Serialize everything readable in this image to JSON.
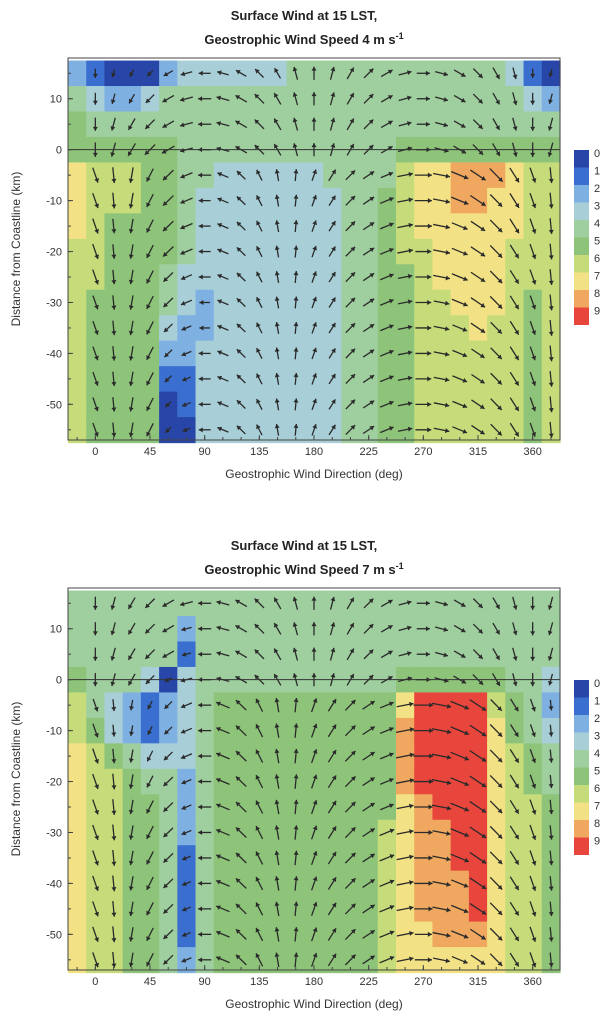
{
  "chart_data": [
    {
      "type": "heatmap",
      "title_line1": "Surface Wind at 15 LST,",
      "title_line2": "Geostrophic Wind Speed 4 m s",
      "title_superscript": "-1",
      "xlabel": "Geostrophic Wind Direction (deg)",
      "ylabel": "Distance from Coastline (km)",
      "xlim": [
        -22.5,
        382.5
      ],
      "ylim": [
        -57,
        18
      ],
      "xticks": [
        "0",
        "45",
        "90",
        "135",
        "180",
        "225",
        "270",
        "315",
        "360"
      ],
      "yticks": [
        "10",
        "0",
        "-10",
        "-20",
        "-30",
        "-40",
        "-50"
      ],
      "colorbar_labels": [
        "0",
        "1",
        "2",
        "3",
        "4",
        "5",
        "6",
        "7",
        "8",
        "9"
      ],
      "colors": [
        "#2846a8",
        "#3a6fd0",
        "#7eb0e2",
        "#a8cfd8",
        "#9fcf9e",
        "#8ec47a",
        "#c6dc7a",
        "#f2e285",
        "#f0a860",
        "#e8463c"
      ],
      "x": [
        -15,
        0,
        15,
        30,
        45,
        60,
        75,
        90,
        105,
        120,
        135,
        150,
        165,
        180,
        195,
        210,
        225,
        240,
        255,
        270,
        285,
        300,
        315,
        330,
        345,
        360,
        375
      ],
      "y": [
        15,
        10,
        5,
        0,
        -5,
        -10,
        -15,
        -20,
        -25,
        -30,
        -35,
        -40,
        -45,
        -50,
        -55
      ],
      "speed_by_column": [
        [
          2,
          4,
          5,
          5,
          7,
          7,
          7,
          6,
          6,
          6,
          6,
          6,
          6,
          6,
          6
        ],
        [
          1,
          3,
          4,
          5,
          6,
          6,
          6,
          6,
          6,
          5,
          5,
          5,
          5,
          5,
          5
        ],
        [
          0,
          2,
          4,
          5,
          6,
          6,
          5,
          5,
          5,
          5,
          5,
          5,
          5,
          5,
          5
        ],
        [
          0,
          2,
          4,
          5,
          6,
          6,
          5,
          5,
          5,
          5,
          5,
          5,
          5,
          5,
          5
        ],
        [
          0,
          3,
          4,
          5,
          5,
          5,
          5,
          5,
          5,
          5,
          5,
          5,
          5,
          5,
          5
        ],
        [
          2,
          4,
          4,
          5,
          5,
          5,
          5,
          5,
          4,
          4,
          3,
          2,
          1,
          0,
          0
        ],
        [
          3,
          4,
          4,
          4,
          4,
          4,
          4,
          4,
          3,
          3,
          2,
          2,
          1,
          1,
          0
        ],
        [
          3,
          4,
          4,
          4,
          4,
          3,
          3,
          3,
          3,
          2,
          2,
          3,
          3,
          3,
          3
        ],
        [
          3,
          4,
          4,
          4,
          3,
          3,
          3,
          3,
          3,
          3,
          3,
          3,
          3,
          3,
          3
        ],
        [
          3,
          4,
          4,
          4,
          3,
          3,
          3,
          3,
          3,
          3,
          3,
          3,
          3,
          3,
          3
        ],
        [
          3,
          4,
          4,
          4,
          3,
          3,
          3,
          3,
          3,
          3,
          3,
          3,
          3,
          3,
          3
        ],
        [
          3,
          4,
          4,
          4,
          3,
          3,
          3,
          3,
          3,
          3,
          3,
          3,
          3,
          3,
          3
        ],
        [
          4,
          4,
          4,
          4,
          3,
          3,
          3,
          3,
          3,
          3,
          3,
          3,
          3,
          3,
          3
        ],
        [
          4,
          4,
          4,
          4,
          3,
          3,
          3,
          3,
          3,
          3,
          3,
          3,
          3,
          3,
          3
        ],
        [
          4,
          4,
          4,
          4,
          4,
          3,
          3,
          3,
          3,
          3,
          3,
          3,
          3,
          3,
          3
        ],
        [
          4,
          4,
          4,
          4,
          4,
          4,
          4,
          4,
          4,
          4,
          4,
          4,
          4,
          4,
          4
        ],
        [
          4,
          4,
          4,
          4,
          4,
          4,
          4,
          4,
          4,
          4,
          4,
          4,
          4,
          4,
          4
        ],
        [
          4,
          4,
          4,
          4,
          4,
          5,
          5,
          5,
          5,
          5,
          5,
          5,
          5,
          5,
          5
        ],
        [
          4,
          4,
          4,
          5,
          6,
          6,
          6,
          6,
          5,
          5,
          5,
          5,
          5,
          5,
          5
        ],
        [
          4,
          4,
          4,
          5,
          7,
          7,
          7,
          6,
          6,
          6,
          6,
          6,
          6,
          6,
          6
        ],
        [
          4,
          4,
          4,
          5,
          7,
          7,
          7,
          7,
          7,
          6,
          6,
          6,
          6,
          6,
          6
        ],
        [
          4,
          4,
          4,
          5,
          8,
          8,
          7,
          7,
          7,
          7,
          6,
          6,
          6,
          6,
          6
        ],
        [
          4,
          4,
          4,
          5,
          8,
          8,
          7,
          7,
          7,
          7,
          7,
          6,
          6,
          6,
          6
        ],
        [
          4,
          4,
          4,
          5,
          8,
          7,
          7,
          7,
          7,
          7,
          6,
          6,
          6,
          6,
          6
        ],
        [
          3,
          4,
          4,
          5,
          7,
          7,
          7,
          6,
          6,
          6,
          6,
          6,
          6,
          6,
          6
        ],
        [
          1,
          3,
          4,
          5,
          6,
          6,
          6,
          6,
          6,
          5,
          5,
          5,
          5,
          5,
          5
        ],
        [
          0,
          2,
          4,
          5,
          6,
          6,
          6,
          6,
          6,
          6,
          6,
          6,
          6,
          6,
          6
        ]
      ]
    },
    {
      "type": "heatmap",
      "title_line1": "Surface Wind at 15 LST,",
      "title_line2": "Geostrophic Wind Speed 7 m s",
      "title_superscript": "-1",
      "xlabel": "Geostrophic Wind Direction (deg)",
      "ylabel": "Distance from Coastline (km)",
      "xlim": [
        -22.5,
        382.5
      ],
      "ylim": [
        -57,
        18
      ],
      "xticks": [
        "0",
        "45",
        "90",
        "135",
        "180",
        "225",
        "270",
        "315",
        "360"
      ],
      "yticks": [
        "10",
        "0",
        "-10",
        "-20",
        "-30",
        "-40",
        "-50"
      ],
      "colorbar_labels": [
        "0",
        "1",
        "2",
        "3",
        "4",
        "5",
        "6",
        "7",
        "8",
        "9"
      ],
      "colors": [
        "#2846a8",
        "#3a6fd0",
        "#7eb0e2",
        "#a8cfd8",
        "#9fcf9e",
        "#8ec47a",
        "#c6dc7a",
        "#f2e285",
        "#f0a860",
        "#e8463c"
      ],
      "x": [
        -15,
        0,
        15,
        30,
        45,
        60,
        75,
        90,
        105,
        120,
        135,
        150,
        165,
        180,
        195,
        210,
        225,
        240,
        255,
        270,
        285,
        300,
        315,
        330,
        345,
        360,
        375
      ],
      "y": [
        15,
        10,
        5,
        0,
        -5,
        -10,
        -15,
        -20,
        -25,
        -30,
        -35,
        -40,
        -45,
        -50,
        -55
      ],
      "speed_by_column": [
        [
          4,
          4,
          4,
          5,
          6,
          6,
          7,
          7,
          7,
          7,
          7,
          7,
          7,
          7,
          7
        ],
        [
          4,
          4,
          4,
          4,
          4,
          5,
          6,
          6,
          6,
          6,
          6,
          6,
          6,
          6,
          6
        ],
        [
          4,
          4,
          4,
          4,
          3,
          3,
          5,
          6,
          6,
          6,
          6,
          6,
          6,
          6,
          6
        ],
        [
          4,
          4,
          4,
          4,
          2,
          2,
          4,
          5,
          5,
          5,
          5,
          5,
          5,
          5,
          5
        ],
        [
          4,
          4,
          4,
          3,
          1,
          1,
          3,
          4,
          5,
          5,
          5,
          5,
          5,
          5,
          5
        ],
        [
          4,
          4,
          4,
          0,
          2,
          2,
          3,
          4,
          4,
          4,
          4,
          4,
          4,
          4,
          4
        ],
        [
          4,
          2,
          1,
          3,
          3,
          3,
          3,
          2,
          2,
          2,
          1,
          1,
          1,
          1,
          2
        ],
        [
          4,
          4,
          4,
          4,
          4,
          4,
          4,
          4,
          4,
          4,
          4,
          4,
          4,
          4,
          4
        ],
        [
          4,
          4,
          4,
          4,
          5,
          5,
          5,
          5,
          5,
          5,
          5,
          5,
          5,
          5,
          5
        ],
        [
          4,
          4,
          4,
          4,
          5,
          5,
          5,
          5,
          5,
          5,
          5,
          5,
          5,
          5,
          5
        ],
        [
          4,
          4,
          4,
          4,
          5,
          5,
          5,
          5,
          5,
          5,
          5,
          5,
          5,
          5,
          5
        ],
        [
          4,
          4,
          4,
          4,
          5,
          5,
          5,
          5,
          5,
          5,
          5,
          5,
          5,
          5,
          5
        ],
        [
          4,
          4,
          4,
          4,
          5,
          5,
          5,
          5,
          5,
          5,
          5,
          5,
          5,
          5,
          5
        ],
        [
          4,
          4,
          4,
          4,
          5,
          5,
          5,
          5,
          5,
          5,
          5,
          5,
          5,
          5,
          5
        ],
        [
          4,
          4,
          4,
          4,
          5,
          5,
          5,
          5,
          5,
          5,
          5,
          5,
          5,
          5,
          5
        ],
        [
          4,
          4,
          4,
          4,
          5,
          5,
          5,
          5,
          5,
          5,
          5,
          5,
          5,
          5,
          5
        ],
        [
          4,
          4,
          4,
          4,
          5,
          5,
          5,
          5,
          5,
          5,
          5,
          5,
          5,
          5,
          5
        ],
        [
          4,
          4,
          4,
          4,
          5,
          5,
          5,
          5,
          5,
          6,
          6,
          6,
          6,
          6,
          6
        ],
        [
          4,
          4,
          4,
          5,
          7,
          8,
          8,
          8,
          7,
          7,
          7,
          7,
          7,
          7,
          7
        ],
        [
          4,
          4,
          4,
          5,
          9,
          9,
          9,
          9,
          8,
          8,
          8,
          8,
          8,
          7,
          7
        ],
        [
          4,
          4,
          4,
          5,
          9,
          9,
          9,
          9,
          9,
          8,
          8,
          8,
          8,
          8,
          7
        ],
        [
          4,
          4,
          4,
          5,
          9,
          9,
          9,
          9,
          9,
          9,
          9,
          8,
          8,
          8,
          7
        ],
        [
          4,
          4,
          4,
          5,
          9,
          9,
          9,
          9,
          9,
          9,
          9,
          9,
          9,
          8,
          7
        ],
        [
          4,
          4,
          4,
          5,
          6,
          7,
          7,
          7,
          7,
          7,
          7,
          7,
          7,
          7,
          7
        ],
        [
          4,
          4,
          4,
          4,
          5,
          5,
          6,
          6,
          6,
          6,
          6,
          6,
          6,
          6,
          6
        ],
        [
          4,
          4,
          4,
          4,
          4,
          4,
          5,
          5,
          6,
          6,
          6,
          6,
          6,
          6,
          6
        ],
        [
          4,
          4,
          4,
          3,
          2,
          3,
          4,
          4,
          5,
          5,
          5,
          5,
          5,
          5,
          5
        ]
      ]
    }
  ]
}
